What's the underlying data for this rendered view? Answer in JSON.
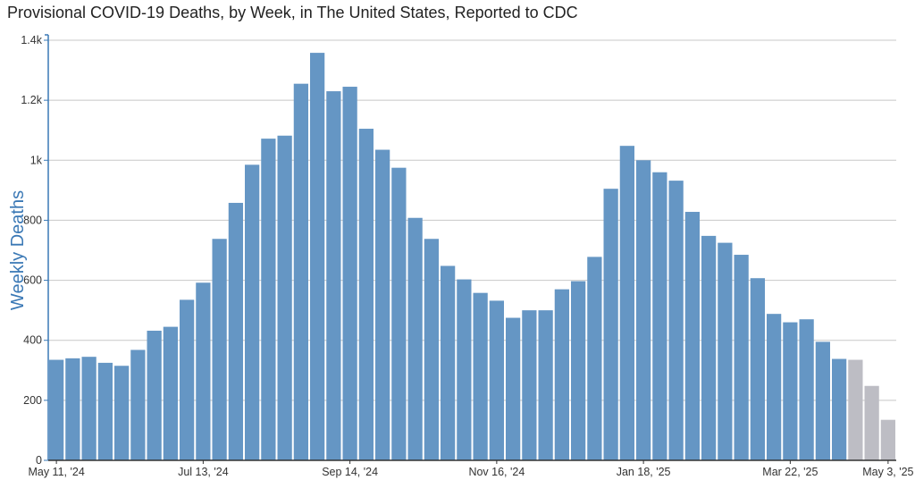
{
  "chart_data": {
    "type": "bar",
    "title": "Provisional COVID-19 Deaths, by Week, in The United States, Reported to CDC",
    "ylabel": "Weekly Deaths",
    "xlabel": "",
    "ylim": [
      0,
      1400
    ],
    "grid": true,
    "y_ticks": [
      {
        "value": 0,
        "label": "0"
      },
      {
        "value": 200,
        "label": "200"
      },
      {
        "value": 400,
        "label": "400"
      },
      {
        "value": 600,
        "label": "600"
      },
      {
        "value": 800,
        "label": "800"
      },
      {
        "value": 1000,
        "label": "1k"
      },
      {
        "value": 1200,
        "label": "1.2k"
      },
      {
        "value": 1400,
        "label": "1.4k"
      }
    ],
    "x_ticks": [
      {
        "category": "2024-05-11",
        "label": "May 11, '24"
      },
      {
        "category": "2024-07-13",
        "label": "Jul 13, '24"
      },
      {
        "category": "2024-09-14",
        "label": "Sep 14, '24"
      },
      {
        "category": "2024-11-16",
        "label": "Nov 16, '24"
      },
      {
        "category": "2025-01-18",
        "label": "Jan 18, '25"
      },
      {
        "category": "2025-03-22",
        "label": "Mar 22, '25"
      },
      {
        "category": "2025-05-03",
        "label": "May 3, '25"
      }
    ],
    "colors": {
      "reported": "#6596c4",
      "provisional": "#bdbdc4",
      "axis": "#3a78b5",
      "grid": "#c8c8c8"
    },
    "categories": [
      "2024-05-11",
      "2024-05-18",
      "2024-05-25",
      "2024-06-01",
      "2024-06-08",
      "2024-06-15",
      "2024-06-22",
      "2024-06-29",
      "2024-07-06",
      "2024-07-13",
      "2024-07-20",
      "2024-07-27",
      "2024-08-03",
      "2024-08-10",
      "2024-08-17",
      "2024-08-24",
      "2024-08-31",
      "2024-09-07",
      "2024-09-14",
      "2024-09-21",
      "2024-09-28",
      "2024-10-05",
      "2024-10-12",
      "2024-10-19",
      "2024-10-26",
      "2024-11-02",
      "2024-11-09",
      "2024-11-16",
      "2024-11-23",
      "2024-11-30",
      "2024-12-07",
      "2024-12-14",
      "2024-12-21",
      "2024-12-28",
      "2025-01-04",
      "2025-01-11",
      "2025-01-18",
      "2025-01-25",
      "2025-02-01",
      "2025-02-08",
      "2025-02-15",
      "2025-02-22",
      "2025-03-01",
      "2025-03-08",
      "2025-03-15",
      "2025-03-22",
      "2025-03-29",
      "2025-04-05",
      "2025-04-12",
      "2025-04-19",
      "2025-04-26",
      "2025-05-03"
    ],
    "values": [
      335,
      340,
      345,
      325,
      315,
      368,
      432,
      445,
      535,
      592,
      738,
      858,
      985,
      1072,
      1082,
      1255,
      1358,
      1230,
      1245,
      1105,
      1035,
      975,
      808,
      738,
      648,
      603,
      558,
      532,
      475,
      500,
      500,
      570,
      597,
      678,
      905,
      1048,
      1000,
      960,
      932,
      828,
      748,
      725,
      685,
      607,
      488,
      460,
      470,
      395,
      338,
      335,
      248,
      135
    ],
    "provisional_start_index": 49
  }
}
